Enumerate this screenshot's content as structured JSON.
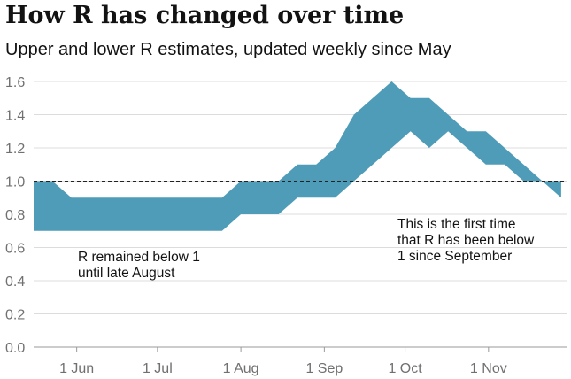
{
  "title": "How R has changed over time",
  "subtitle": "Upper and lower R estimates, updated weekly since May",
  "chart_data": {
    "type": "area",
    "x": [
      "2020-05-16",
      "2020-05-23",
      "2020-05-30",
      "2020-06-06",
      "2020-06-13",
      "2020-06-20",
      "2020-06-27",
      "2020-07-04",
      "2020-07-11",
      "2020-07-18",
      "2020-07-25",
      "2020-08-01",
      "2020-08-08",
      "2020-08-15",
      "2020-08-22",
      "2020-08-29",
      "2020-09-05",
      "2020-09-12",
      "2020-09-19",
      "2020-09-26",
      "2020-10-03",
      "2020-10-10",
      "2020-10-17",
      "2020-10-24",
      "2020-10-31",
      "2020-11-07",
      "2020-11-14",
      "2020-11-21",
      "2020-11-28"
    ],
    "series": [
      {
        "values": [
          0.7,
          0.7,
          0.7,
          0.7,
          0.7,
          0.7,
          0.7,
          0.7,
          0.7,
          0.7,
          0.7,
          0.8,
          0.8,
          0.8,
          0.9,
          0.9,
          0.9,
          1.0,
          1.1,
          1.2,
          1.3,
          1.2,
          1.3,
          1.2,
          1.1,
          1.1,
          1.0,
          1.0,
          0.9
        ]
      },
      {
        "values": [
          1.0,
          1.0,
          0.9,
          0.9,
          0.9,
          0.9,
          0.9,
          0.9,
          0.9,
          0.9,
          0.9,
          1.0,
          1.0,
          1.0,
          1.1,
          1.1,
          1.2,
          1.4,
          1.5,
          1.6,
          1.5,
          1.5,
          1.4,
          1.3,
          1.3,
          1.2,
          1.1,
          1.0,
          1.0
        ]
      }
    ],
    "x_ticks": [
      {
        "date": "2020-06-01",
        "label": "1 Jun"
      },
      {
        "date": "2020-07-01",
        "label": "1 Jul"
      },
      {
        "date": "2020-08-01",
        "label": "1 Aug"
      },
      {
        "date": "2020-09-01",
        "label": "1 Sep"
      },
      {
        "date": "2020-10-01",
        "label": "1 Oct"
      },
      {
        "date": "2020-11-01",
        "label": "1 Nov"
      }
    ],
    "y_ticks": [
      "0.0",
      "0.2",
      "0.4",
      "0.6",
      "0.8",
      "1.0",
      "1.2",
      "1.4",
      "1.6"
    ],
    "xlim": [
      "2020-05-16",
      "2020-11-30"
    ],
    "ylim": [
      0,
      1.6
    ],
    "reference_line": 1.0,
    "grid": true,
    "fill_color": "#4f9cb8",
    "annotations": [
      {
        "lines": [
          "R remained below 1",
          "until late August"
        ]
      },
      {
        "lines": [
          "This is the first time",
          "that R has been below",
          "1 since September"
        ]
      }
    ]
  }
}
